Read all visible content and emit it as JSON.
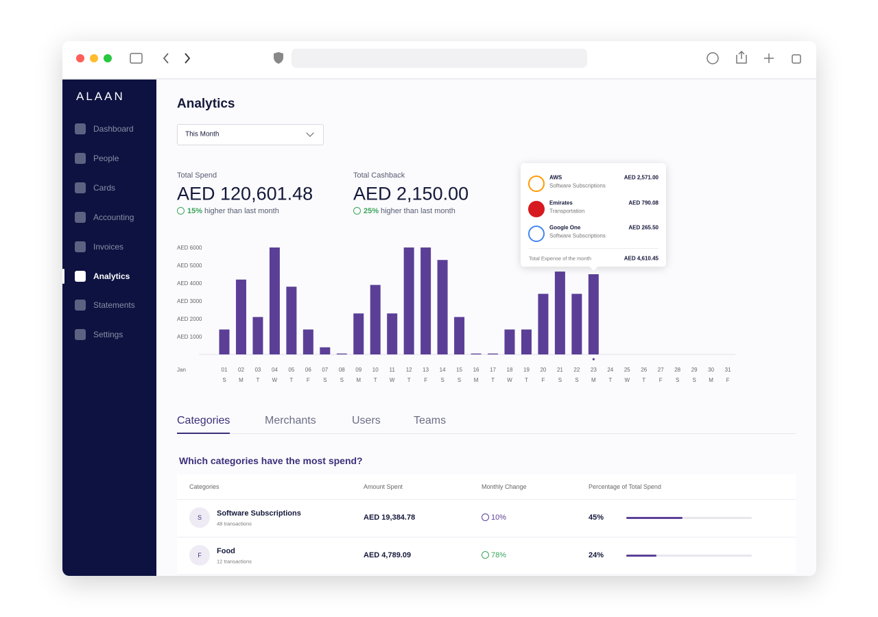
{
  "sidebar": {
    "logo": "ALAAN",
    "items": [
      "Dashboard",
      "People",
      "Cards",
      "Accounting",
      "Invoices",
      "Analytics",
      "Statements",
      "Settings"
    ],
    "active_item": "Analytics"
  },
  "page": {
    "title": "Analytics",
    "period": "This Month"
  },
  "stats": [
    {
      "label": "Total Spend",
      "value": "AED 120,601.48",
      "change": "15%",
      "change_text": "higher than last month"
    },
    {
      "label": "Total Cashback",
      "value": "AED 2,150.00",
      "change": "25%",
      "change_text": "higher than last month"
    }
  ],
  "chart_data": {
    "type": "bar",
    "month": "Jan",
    "categories": [
      "01",
      "02",
      "03",
      "04",
      "05",
      "06",
      "07",
      "08",
      "09",
      "10",
      "11",
      "12",
      "13",
      "14",
      "15",
      "16",
      "17",
      "18",
      "19",
      "20",
      "21",
      "22",
      "23",
      "24",
      "25",
      "26",
      "27",
      "28",
      "29",
      "30",
      "31"
    ],
    "weekdays": [
      "S",
      "M",
      "T",
      "W",
      "T",
      "F",
      "S",
      "S",
      "M",
      "T",
      "W",
      "T",
      "F",
      "S",
      "S",
      "M",
      "T",
      "W",
      "T",
      "F",
      "S",
      "S",
      "M",
      "T",
      "W",
      "T",
      "F",
      "S",
      "S",
      "M",
      "F"
    ],
    "values": [
      1400,
      4200,
      2100,
      6000,
      3800,
      1400,
      400,
      50,
      2300,
      3900,
      2300,
      6000,
      6000,
      5300,
      2100,
      50,
      50,
      1400,
      1400,
      3400,
      4650,
      3400,
      4500,
      null,
      null,
      null,
      null,
      null,
      null,
      null,
      null
    ],
    "color": "#5b3f97",
    "selected_category": "23",
    "ylim": [
      0,
      6000
    ],
    "yticks": [
      {
        "value": 1000,
        "label": "AED 1000"
      },
      {
        "value": 2000,
        "label": "AED 2000"
      },
      {
        "value": 3000,
        "label": "AED 3000"
      },
      {
        "value": 4000,
        "label": "AED 4000"
      },
      {
        "value": 5000,
        "label": "AED 5000"
      },
      {
        "value": 6000,
        "label": "AED 6000"
      }
    ]
  },
  "tooltip": {
    "items": [
      {
        "name": "AWS",
        "category": "Software Subscriptions",
        "amount": "AED 2,571.00"
      },
      {
        "name": "Emirates",
        "category": "Transportation",
        "amount": "AED 790.08"
      },
      {
        "name": "Google One",
        "category": "Software Subscriptions",
        "amount": "AED 265.50"
      }
    ],
    "total_label": "Total Expense of the month",
    "total": "AED 4,610.45"
  },
  "tabs": {
    "items": [
      "Categories",
      "Merchants",
      "Users",
      "Teams"
    ],
    "active": "Categories"
  },
  "section_title": "Which categories have the most spend?",
  "table": {
    "columns": [
      "Categories",
      "Amount Spent",
      "Monthly Change",
      "Percentage of Total Spend"
    ],
    "rows": [
      {
        "initial": "S",
        "name": "Software Subscriptions",
        "transactions": "48 transactions",
        "amount": "AED 19,384.78",
        "change": "10%",
        "change_dir": "up",
        "share": {
          "value": 45,
          "label": "45%"
        }
      },
      {
        "initial": "F",
        "name": "Food",
        "transactions": "12 transactions",
        "amount": "AED 4,789.09",
        "change": "78%",
        "change_dir": "down",
        "share": {
          "value": 24,
          "label": "24%"
        }
      }
    ]
  }
}
